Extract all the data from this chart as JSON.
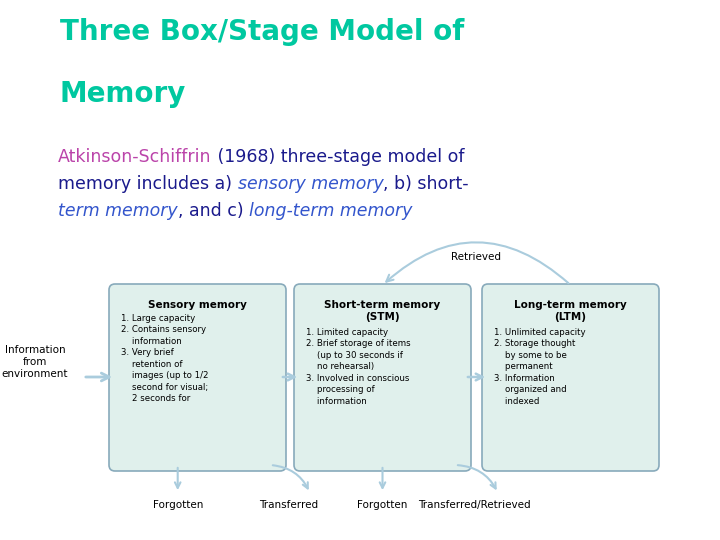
{
  "title_line1": "Three Box/Stage Model of",
  "title_line2": "Memory",
  "title_color": "#00C8A0",
  "bg_color": "#FFFFFF",
  "box_fill": "#E0F0EC",
  "box_edge": "#88AABB",
  "boxes": [
    {
      "label": "sensory",
      "title": "Sensory memory",
      "body": "1. Large capacity\n2. Contains sensory\n    information\n3. Very brief\n    retention of\n    images (up to 1/2\n    second for visual;\n    2 seconds for"
    },
    {
      "label": "stm",
      "title": "Short-term memory\n(STM)",
      "body": "1. Limited capacity\n2. Brief storage of items\n    (up to 30 seconds if\n    no rehearsal)\n3. Involved in conscious\n    processing of\n    information"
    },
    {
      "label": "ltm",
      "title": "Long-term memory\n(LTM)",
      "body": "1. Unlimited capacity\n2. Storage thought\n    by some to be\n    permanent\n3. Information\n    organized and\n    indexed"
    }
  ],
  "arrow_color": "#AACCDD",
  "text_color": "#111111",
  "subtitle_color_normal": "#1A1A8C",
  "subtitle_color_pink": "#BB44AA",
  "subtitle_color_blue": "#3355CC"
}
